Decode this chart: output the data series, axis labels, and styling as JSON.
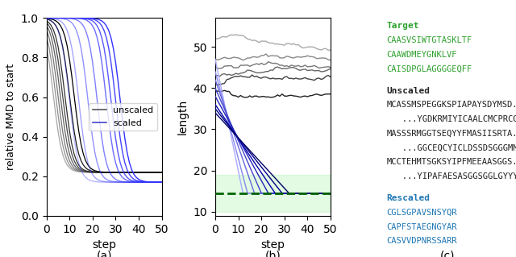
{
  "panel_a": {
    "title": "(a)",
    "xlabel": "step",
    "ylabel": "relative MMD to start",
    "xlim": [
      0,
      50
    ],
    "ylim": [
      0.0,
      1.0
    ],
    "yticks": [
      0.0,
      0.2,
      0.4,
      0.6,
      0.8,
      1.0
    ],
    "xticks": [
      0,
      10,
      20,
      30,
      40,
      50
    ],
    "n_steps": 51,
    "unscaled_curves": {
      "n": 8,
      "drop_steps": [
        3,
        4,
        5,
        6,
        7,
        8,
        10,
        12
      ],
      "plateau": 0.22
    },
    "scaled_curves": {
      "n": 8,
      "drop_steps": [
        10,
        14,
        18,
        22,
        26,
        28,
        30,
        32
      ],
      "plateau": 0.17
    },
    "legend_labels": [
      "unscaled",
      "scaled"
    ],
    "legend_colors": [
      "#555555",
      "#4444cc"
    ]
  },
  "panel_b": {
    "title": "(b)",
    "xlabel": "step",
    "ylabel": "length",
    "xlim": [
      0,
      50
    ],
    "ylim": [
      9,
      57
    ],
    "yticks": [
      10,
      20,
      30,
      40,
      50
    ],
    "xticks": [
      0,
      10,
      20,
      30,
      40,
      50
    ],
    "n_steps": 51,
    "target_band_ymin": 10,
    "target_band_ymax": 19,
    "target_mean": 14.5,
    "unscaled_curves": {
      "colors": [
        "#aaaaaa",
        "#888888",
        "#777777",
        "#666666",
        "#444444",
        "#222222"
      ],
      "start_lengths": [
        52,
        47,
        45,
        43,
        41,
        39
      ],
      "noise_amp": 1.5
    },
    "scaled_curves": {
      "colors": [
        "#aaaaff",
        "#8888ee",
        "#6666dd",
        "#4444cc",
        "#2222bb",
        "#0000aa",
        "#000088",
        "#000066"
      ],
      "start_lengths": [
        47,
        44,
        42,
        40,
        38,
        36,
        35,
        34
      ],
      "drop_steps": [
        12,
        14,
        17,
        20,
        23,
        26,
        29,
        32
      ],
      "end_length": 14.5
    }
  },
  "panel_c": {
    "title": "(c)",
    "target_label": "Target",
    "target_color": "#2ca02c",
    "target_sequences": [
      "CAASVSIWTGTASKLTF",
      "CAAWDMEYGNKLVF",
      "CAISDPGLAGGGGEQFF"
    ],
    "unscaled_label": "Unscaled",
    "unscaled_color": "#222222",
    "unscaled_sequences": [
      "MCASSMSPEGGKSPIAPAYSDYMSD...",
      "   ...YGDKRMIYICAALCMCPRCGKFS",
      "MASSSRMGGTSEQYYFMASIISRTA...",
      "   ...GGCEQCYICLDSSDSGGGMMM",
      "MCCTEHMTSGKSYIPFMEEAASGGS...",
      "   ...YIPAFAESASGGSGGLGYYYY"
    ],
    "rescaled_label": "Rescaled",
    "rescaled_color": "#1f77b4",
    "rescaled_sequences": [
      "CGLSGPAVSNSYQR",
      "CAPFSTAEGNGYAR",
      "CASVVDPNRSSARR"
    ],
    "font_size": 7.5,
    "monospace_font": "monospace"
  },
  "fig_background": "#ffffff"
}
